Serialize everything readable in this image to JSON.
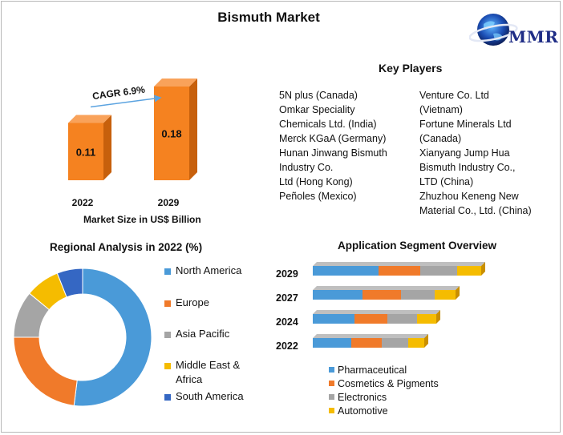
{
  "title": "Bismuth Market",
  "logo": {
    "text": "MMR",
    "icon": "globe-icon"
  },
  "key_players": {
    "title": "Key Players",
    "left": [
      "5N plus (Canada)",
      " Omkar Speciality",
      "Chemicals Ltd. (India)",
      " Merck KGaA (Germany)",
      " Hunan Jinwang Bismuth",
      "Industry Co.",
      " Ltd (Hong Kong)",
      " Peñoles (Mexico)"
    ],
    "right": [
      "Venture Co. Ltd",
      "(Vietnam)",
      " Fortune Minerals Ltd",
      "(Canada)",
      " Xianyang Jump Hua",
      "Bismuth Industry Co.,",
      "LTD (China)",
      " Zhuzhou Keneng New",
      "Material Co., Ltd. (China)"
    ]
  },
  "colors": {
    "bar_orange": "#f58220",
    "bar_orange_dark": "#c7600c",
    "blue": "#4a9ad8",
    "orange": "#f07a2a",
    "gray": "#a5a5a5",
    "yellow": "#f5bc00",
    "dark_blue": "#3567c3"
  },
  "chart_data": [
    {
      "type": "bar",
      "categories": [
        "2022",
        "2029"
      ],
      "values": [
        0.11,
        0.18
      ],
      "data_labels": [
        "0.11",
        "0.18"
      ],
      "xlabel": "Market Size in US$ Billion",
      "annotation": "CAGR 6.9%",
      "ylim": [
        0,
        0.2
      ]
    },
    {
      "type": "pie",
      "title": "Regional Analysis in 2022 (%)",
      "labels": [
        "North America",
        "Europe",
        "Asia Pacific",
        "Middle East & Africa",
        "South America"
      ],
      "values": [
        52,
        23,
        11,
        8,
        6
      ],
      "legend": [
        "North America",
        "Europe",
        "Asia Pacific",
        "Middle East &",
        "Africa",
        "South America"
      ],
      "legend_position": "right"
    },
    {
      "type": "bar",
      "orientation": "horizontal",
      "stacked": true,
      "title": "Application Segment Overview",
      "categories": [
        "2029",
        "2027",
        "2024",
        "2022"
      ],
      "series": [
        {
          "name": "Pharmaceutical",
          "values": [
            82,
            62,
            52,
            48
          ]
        },
        {
          "name": "Cosmetics & Pigments",
          "values": [
            52,
            48,
            41,
            38
          ]
        },
        {
          "name": "Electronics",
          "values": [
            46,
            42,
            37,
            33
          ]
        },
        {
          "name": "Automotive",
          "values": [
            30,
            26,
            24,
            20
          ]
        }
      ],
      "legend_position": "bottom"
    }
  ]
}
